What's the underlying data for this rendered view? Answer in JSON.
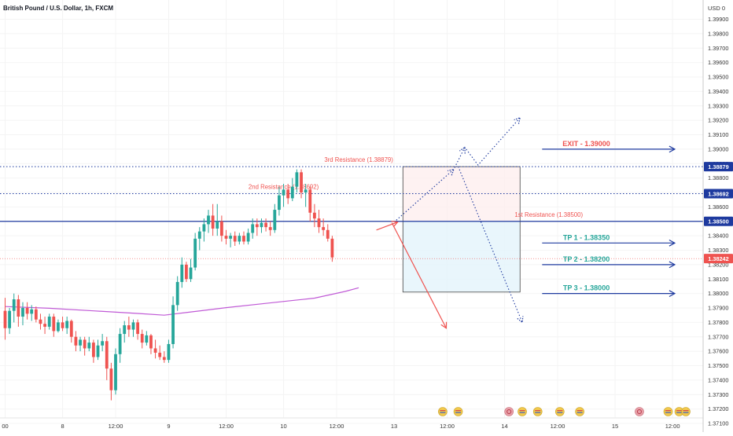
{
  "header": {
    "title": "British Pound / U.S. Dollar, 1h, FXCM"
  },
  "axis": {
    "currency_label": "USD 0"
  },
  "colors": {
    "up": "#26a69a",
    "down": "#ef5350",
    "ma": "#c05ad6",
    "resistance": "#ef5350",
    "take_profit": "#26a69a",
    "guide": "#1e3a9f",
    "box_top": "#fdecec",
    "box_bottom": "#e3f4fb"
  },
  "chart_data": {
    "type": "candlestick",
    "title": "British Pound / U.S. Dollar, 1h, FXCM",
    "ylim": [
      1.371,
      1.3999
    ],
    "y_ticks": [
      "1.39900",
      "1.39800",
      "1.39700",
      "1.39600",
      "1.39500",
      "1.39400",
      "1.39300",
      "1.39200",
      "1.39100",
      "1.39000",
      "1.38900",
      "1.38800",
      "1.38700",
      "1.38600",
      "1.38500",
      "1.38400",
      "1.38300",
      "1.38200",
      "1.38100",
      "1.38000",
      "1.37900",
      "1.37800",
      "1.37700",
      "1.37600",
      "1.37500",
      "1.37400",
      "1.37300",
      "1.37200",
      "1.37100"
    ],
    "x_ticks": [
      {
        "label": "00",
        "slot": 0
      },
      {
        "label": "8",
        "slot": 13
      },
      {
        "label": "12:00",
        "slot": 25
      },
      {
        "label": "9",
        "slot": 37
      },
      {
        "label": "12:00",
        "slot": 50
      },
      {
        "label": "10",
        "slot": 63
      },
      {
        "label": "12:00",
        "slot": 75
      },
      {
        "label": "13",
        "slot": 88
      },
      {
        "label": "12:00",
        "slot": 100
      },
      {
        "label": "14",
        "slot": 113
      },
      {
        "label": "12:00",
        "slot": 125
      },
      {
        "label": "15",
        "slot": 138
      },
      {
        "label": "12:00",
        "slot": 151
      }
    ],
    "candles": [
      {
        "o": 1.3788,
        "h": 1.3797,
        "l": 1.3768,
        "c": 1.3776
      },
      {
        "o": 1.3776,
        "h": 1.379,
        "l": 1.3772,
        "c": 1.3788
      },
      {
        "o": 1.3788,
        "h": 1.38,
        "l": 1.378,
        "c": 1.3796
      },
      {
        "o": 1.3796,
        "h": 1.3799,
        "l": 1.3777,
        "c": 1.3784
      },
      {
        "o": 1.3784,
        "h": 1.3794,
        "l": 1.3778,
        "c": 1.379
      },
      {
        "o": 1.379,
        "h": 1.3794,
        "l": 1.3782,
        "c": 1.3786
      },
      {
        "o": 1.3786,
        "h": 1.3792,
        "l": 1.3781,
        "c": 1.3789
      },
      {
        "o": 1.3789,
        "h": 1.3791,
        "l": 1.378,
        "c": 1.3782
      },
      {
        "o": 1.3782,
        "h": 1.3786,
        "l": 1.3775,
        "c": 1.3779
      },
      {
        "o": 1.3779,
        "h": 1.3784,
        "l": 1.3772,
        "c": 1.3777
      },
      {
        "o": 1.3777,
        "h": 1.3786,
        "l": 1.3775,
        "c": 1.3784
      },
      {
        "o": 1.3784,
        "h": 1.3786,
        "l": 1.377,
        "c": 1.3774
      },
      {
        "o": 1.3774,
        "h": 1.3782,
        "l": 1.3773,
        "c": 1.378
      },
      {
        "o": 1.378,
        "h": 1.3784,
        "l": 1.3774,
        "c": 1.3776
      },
      {
        "o": 1.3776,
        "h": 1.3784,
        "l": 1.3772,
        "c": 1.3781
      },
      {
        "o": 1.3781,
        "h": 1.3782,
        "l": 1.3766,
        "c": 1.377
      },
      {
        "o": 1.377,
        "h": 1.3774,
        "l": 1.376,
        "c": 1.3764
      },
      {
        "o": 1.3764,
        "h": 1.377,
        "l": 1.376,
        "c": 1.3768
      },
      {
        "o": 1.3768,
        "h": 1.377,
        "l": 1.3757,
        "c": 1.3762
      },
      {
        "o": 1.3762,
        "h": 1.377,
        "l": 1.376,
        "c": 1.3766
      },
      {
        "o": 1.3766,
        "h": 1.3768,
        "l": 1.3752,
        "c": 1.3756
      },
      {
        "o": 1.3756,
        "h": 1.3768,
        "l": 1.3754,
        "c": 1.3764
      },
      {
        "o": 1.3764,
        "h": 1.3772,
        "l": 1.376,
        "c": 1.3767
      },
      {
        "o": 1.3767,
        "h": 1.377,
        "l": 1.374,
        "c": 1.3748
      },
      {
        "o": 1.3748,
        "h": 1.3752,
        "l": 1.3726,
        "c": 1.3733
      },
      {
        "o": 1.3733,
        "h": 1.3762,
        "l": 1.373,
        "c": 1.3758
      },
      {
        "o": 1.3758,
        "h": 1.3776,
        "l": 1.3752,
        "c": 1.3772
      },
      {
        "o": 1.3772,
        "h": 1.3781,
        "l": 1.3766,
        "c": 1.3778
      },
      {
        "o": 1.3778,
        "h": 1.3784,
        "l": 1.377,
        "c": 1.3775
      },
      {
        "o": 1.3775,
        "h": 1.3782,
        "l": 1.377,
        "c": 1.378
      },
      {
        "o": 1.378,
        "h": 1.3782,
        "l": 1.3768,
        "c": 1.3772
      },
      {
        "o": 1.3772,
        "h": 1.3775,
        "l": 1.3762,
        "c": 1.3766
      },
      {
        "o": 1.3766,
        "h": 1.3774,
        "l": 1.3764,
        "c": 1.3771
      },
      {
        "o": 1.3771,
        "h": 1.3772,
        "l": 1.3758,
        "c": 1.3762
      },
      {
        "o": 1.3762,
        "h": 1.3768,
        "l": 1.3755,
        "c": 1.3759
      },
      {
        "o": 1.3759,
        "h": 1.3764,
        "l": 1.3754,
        "c": 1.3756
      },
      {
        "o": 1.3756,
        "h": 1.376,
        "l": 1.3752,
        "c": 1.3754
      },
      {
        "o": 1.3754,
        "h": 1.3768,
        "l": 1.3752,
        "c": 1.3765
      },
      {
        "o": 1.3765,
        "h": 1.3798,
        "l": 1.3762,
        "c": 1.3792
      },
      {
        "o": 1.3792,
        "h": 1.3812,
        "l": 1.3788,
        "c": 1.3808
      },
      {
        "o": 1.3808,
        "h": 1.3825,
        "l": 1.3804,
        "c": 1.382
      },
      {
        "o": 1.382,
        "h": 1.3822,
        "l": 1.3808,
        "c": 1.381
      },
      {
        "o": 1.381,
        "h": 1.3824,
        "l": 1.3808,
        "c": 1.3818
      },
      {
        "o": 1.3818,
        "h": 1.3842,
        "l": 1.3816,
        "c": 1.3838
      },
      {
        "o": 1.3838,
        "h": 1.3846,
        "l": 1.383,
        "c": 1.3843
      },
      {
        "o": 1.3843,
        "h": 1.3852,
        "l": 1.3836,
        "c": 1.3848
      },
      {
        "o": 1.3848,
        "h": 1.3858,
        "l": 1.3842,
        "c": 1.3854
      },
      {
        "o": 1.3854,
        "h": 1.3862,
        "l": 1.384,
        "c": 1.3845
      },
      {
        "o": 1.3845,
        "h": 1.3862,
        "l": 1.384,
        "c": 1.385
      },
      {
        "o": 1.385,
        "h": 1.3854,
        "l": 1.3836,
        "c": 1.384
      },
      {
        "o": 1.384,
        "h": 1.3844,
        "l": 1.3834,
        "c": 1.3838
      },
      {
        "o": 1.3838,
        "h": 1.3842,
        "l": 1.3832,
        "c": 1.384
      },
      {
        "o": 1.384,
        "h": 1.3843,
        "l": 1.3833,
        "c": 1.3836
      },
      {
        "o": 1.3836,
        "h": 1.3842,
        "l": 1.3834,
        "c": 1.384
      },
      {
        "o": 1.384,
        "h": 1.3843,
        "l": 1.3834,
        "c": 1.3836
      },
      {
        "o": 1.3836,
        "h": 1.3845,
        "l": 1.3834,
        "c": 1.3842
      },
      {
        "o": 1.3842,
        "h": 1.3852,
        "l": 1.3838,
        "c": 1.3848
      },
      {
        "o": 1.3848,
        "h": 1.3852,
        "l": 1.384,
        "c": 1.3846
      },
      {
        "o": 1.3846,
        "h": 1.3852,
        "l": 1.3842,
        "c": 1.3849
      },
      {
        "o": 1.3849,
        "h": 1.3852,
        "l": 1.3843,
        "c": 1.3846
      },
      {
        "o": 1.3846,
        "h": 1.385,
        "l": 1.384,
        "c": 1.3844
      },
      {
        "o": 1.3844,
        "h": 1.3862,
        "l": 1.3842,
        "c": 1.3858
      },
      {
        "o": 1.3858,
        "h": 1.3874,
        "l": 1.3854,
        "c": 1.3868
      },
      {
        "o": 1.3868,
        "h": 1.3876,
        "l": 1.386,
        "c": 1.3872
      },
      {
        "o": 1.3872,
        "h": 1.3876,
        "l": 1.3862,
        "c": 1.3866
      },
      {
        "o": 1.3866,
        "h": 1.388,
        "l": 1.3864,
        "c": 1.3874
      },
      {
        "o": 1.3874,
        "h": 1.3886,
        "l": 1.387,
        "c": 1.3884
      },
      {
        "o": 1.3884,
        "h": 1.3886,
        "l": 1.3866,
        "c": 1.387
      },
      {
        "o": 1.387,
        "h": 1.3876,
        "l": 1.386,
        "c": 1.3872
      },
      {
        "o": 1.3872,
        "h": 1.3874,
        "l": 1.385,
        "c": 1.3856
      },
      {
        "o": 1.3856,
        "h": 1.3862,
        "l": 1.3846,
        "c": 1.3852
      },
      {
        "o": 1.3852,
        "h": 1.3858,
        "l": 1.3842,
        "c": 1.3846
      },
      {
        "o": 1.3846,
        "h": 1.3852,
        "l": 1.384,
        "c": 1.3844
      },
      {
        "o": 1.3844,
        "h": 1.3848,
        "l": 1.3836,
        "c": 1.3838
      },
      {
        "o": 1.3838,
        "h": 1.384,
        "l": 1.3822,
        "c": 1.3825
      }
    ],
    "moving_average": {
      "color": "#c05ad6",
      "points": [
        {
          "slot": 0,
          "value": 1.3791
        },
        {
          "slot": 10,
          "value": 1.37898
        },
        {
          "slot": 20,
          "value": 1.3788
        },
        {
          "slot": 30,
          "value": 1.37862
        },
        {
          "slot": 36,
          "value": 1.3785
        },
        {
          "slot": 42,
          "value": 1.37872
        },
        {
          "slot": 50,
          "value": 1.37902
        },
        {
          "slot": 60,
          "value": 1.37935
        },
        {
          "slot": 70,
          "value": 1.37968
        },
        {
          "slot": 77,
          "value": 1.38015
        },
        {
          "slot": 80,
          "value": 1.3804
        }
      ]
    },
    "levels": [
      {
        "name": "3rd Resistance",
        "label": "3rd Resistance (1.38879)",
        "value": 1.38879,
        "tag": "1.38879",
        "style": "dotted"
      },
      {
        "name": "2nd Resistance",
        "label": "2nd Resistance (1.38692)",
        "value": 1.38692,
        "tag": "1.38692",
        "style": "dotted"
      },
      {
        "name": "1st Resistance",
        "label": "1st Resistance (1.38500)",
        "value": 1.385,
        "tag": "1.38500",
        "style": "solid"
      },
      {
        "name": "current",
        "label": "",
        "value": 1.38242,
        "tag": "1.38242",
        "style": "current"
      }
    ],
    "targets": [
      {
        "label": "EXIT - 1.39000",
        "value": 1.39,
        "kind": "exit"
      },
      {
        "label": "TP 1 - 1.38350",
        "value": 1.3835,
        "kind": "tp"
      },
      {
        "label": "TP 2 - 1.38200",
        "value": 1.382,
        "kind": "tp"
      },
      {
        "label": "TP 3 - 1.38000",
        "value": 1.38,
        "kind": "tp"
      }
    ],
    "position_box": {
      "top": 1.38879,
      "mid": 1.385,
      "bottom": 1.3801
    },
    "projections": {
      "solid_arrows": [
        [
          {
            "slot": 84,
            "value": 1.3844
          },
          {
            "slot": 88.8,
            "value": 1.38495
          }
        ],
        [
          {
            "slot": 87.5,
            "value": 1.3849
          },
          {
            "slot": 99.8,
            "value": 1.3776
          }
        ]
      ],
      "dotted_path": [
        {
          "slot": 88.5,
          "value": 1.38508
        },
        {
          "slot": 101.5,
          "value": 1.3886
        },
        {
          "slot": 104,
          "value": 1.39013
        },
        {
          "slot": 107,
          "value": 1.3889
        },
        {
          "slot": 116.5,
          "value": 1.39218
        }
      ],
      "dotted_down": [
        {
          "slot": 102.5,
          "value": 1.3888
        },
        {
          "slot": 117,
          "value": 1.378
        }
      ]
    },
    "events": [
      {
        "slot": 99,
        "kind": "us"
      },
      {
        "slot": 102.5,
        "kind": "us"
      },
      {
        "slot": 114,
        "kind": "gb"
      },
      {
        "slot": 117,
        "kind": "us"
      },
      {
        "slot": 120.5,
        "kind": "us"
      },
      {
        "slot": 125.5,
        "kind": "us"
      },
      {
        "slot": 130,
        "kind": "us"
      },
      {
        "slot": 143.5,
        "kind": "gb"
      },
      {
        "slot": 150,
        "kind": "us"
      },
      {
        "slot": 152.5,
        "kind": "us"
      },
      {
        "slot": 154,
        "kind": "us"
      }
    ]
  }
}
